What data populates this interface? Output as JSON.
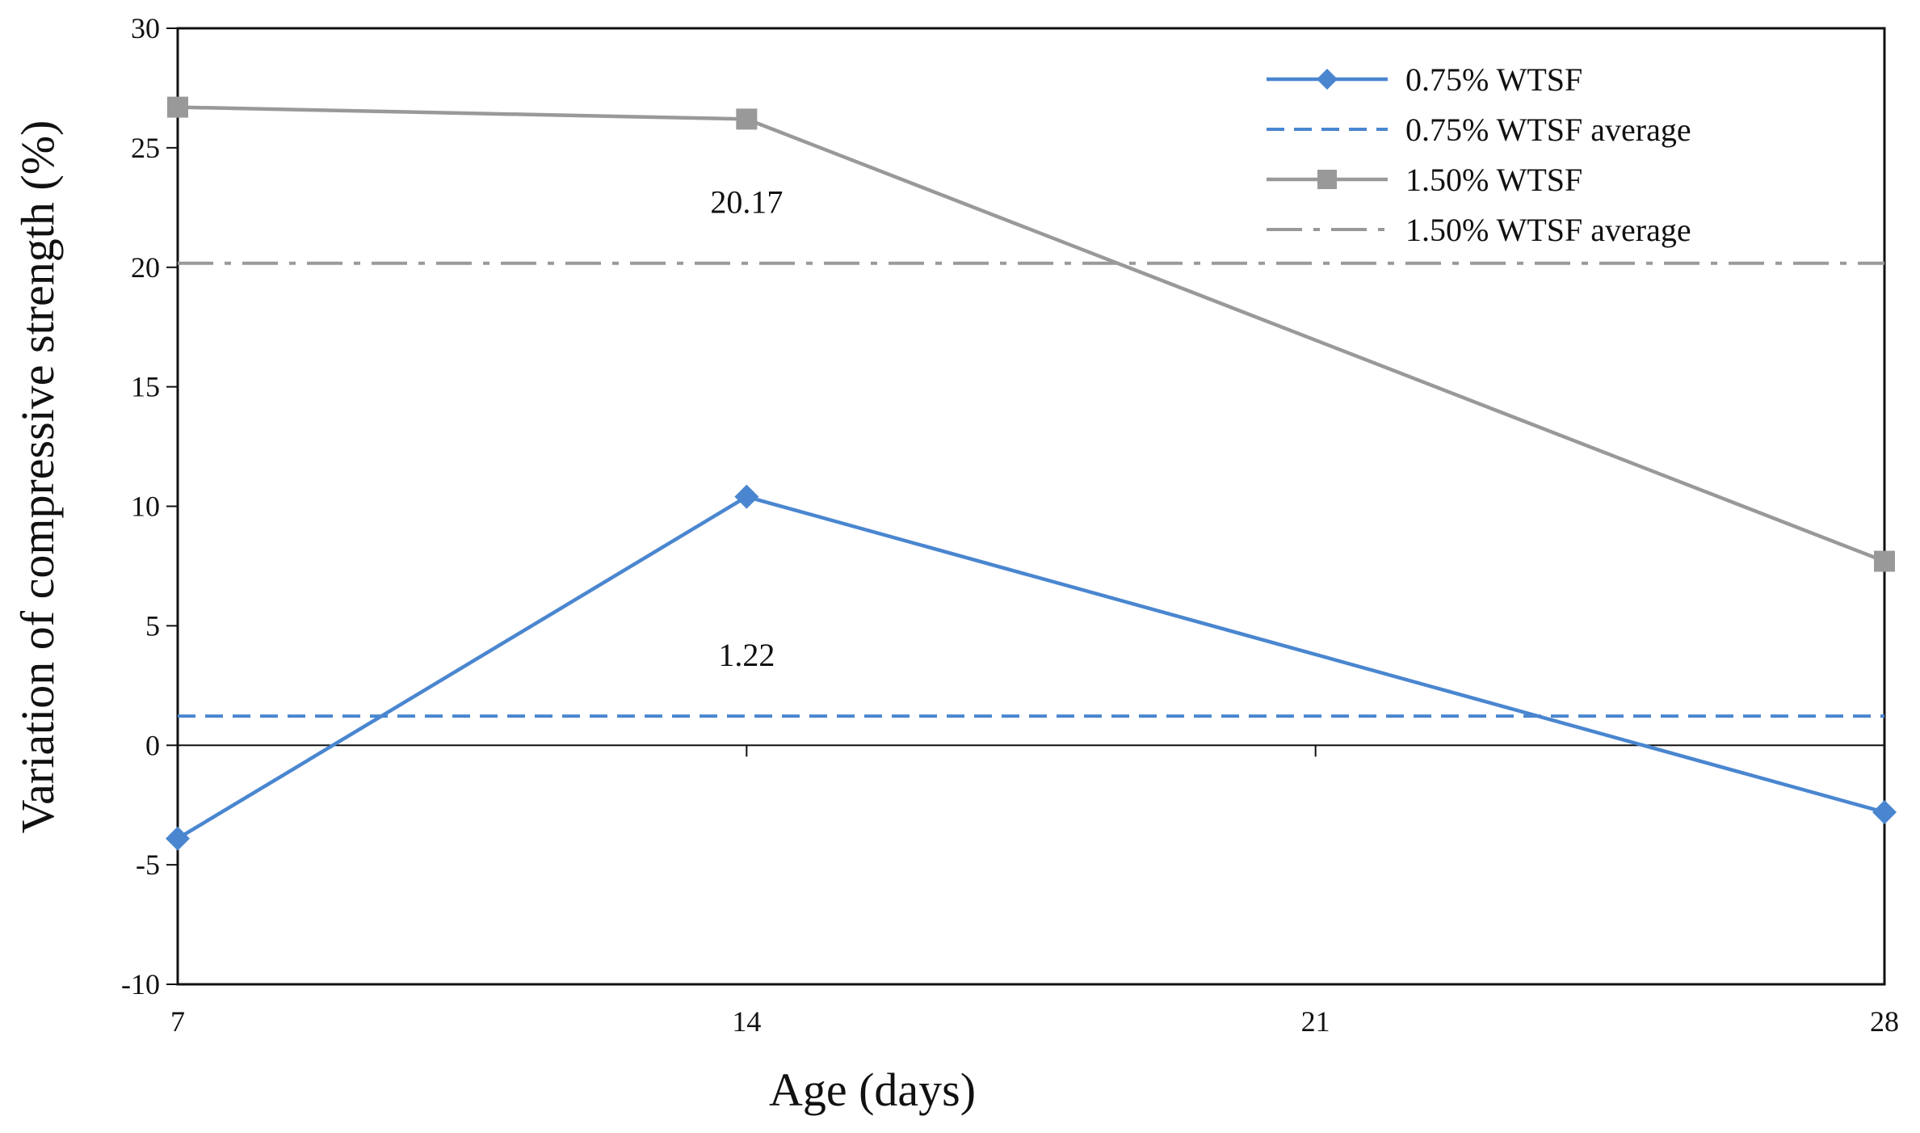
{
  "chart_data": {
    "type": "line",
    "xlabel": "Age (days)",
    "ylabel": "Variation of compressive strength (%)",
    "x": [
      7,
      14,
      21,
      28
    ],
    "x_tick_labels": [
      "7",
      "14",
      "21",
      "28"
    ],
    "xlim": [
      7,
      28
    ],
    "ylim": [
      -10,
      30
    ],
    "y_ticks": [
      -10,
      -5,
      0,
      5,
      10,
      15,
      20,
      25,
      30
    ],
    "y_tick_labels": [
      "-10",
      "-5",
      "0",
      "5",
      "10",
      "15",
      "20",
      "25",
      "30"
    ],
    "grid": false,
    "legend_position": "top-right",
    "series": [
      {
        "name": "0.75% WTSF",
        "x": [
          7,
          14,
          28
        ],
        "values": [
          -3.9,
          10.4,
          -2.8
        ],
        "color": "#4a86d0",
        "marker": "diamond",
        "line_style": "solid"
      },
      {
        "name": "1.50% WTSF",
        "x": [
          7,
          14,
          28
        ],
        "values": [
          26.7,
          26.2,
          7.7
        ],
        "color": "#999999",
        "marker": "square",
        "line_style": "solid"
      }
    ],
    "reference_lines": [
      {
        "name": "0.75% WTSF average",
        "value": 1.22,
        "label": "1.22",
        "color": "#4a86d0",
        "line_style": "dashed"
      },
      {
        "name": "1.50% WTSF average",
        "value": 20.17,
        "label": "20.17",
        "color": "#999999",
        "line_style": "dash-dot"
      }
    ]
  }
}
